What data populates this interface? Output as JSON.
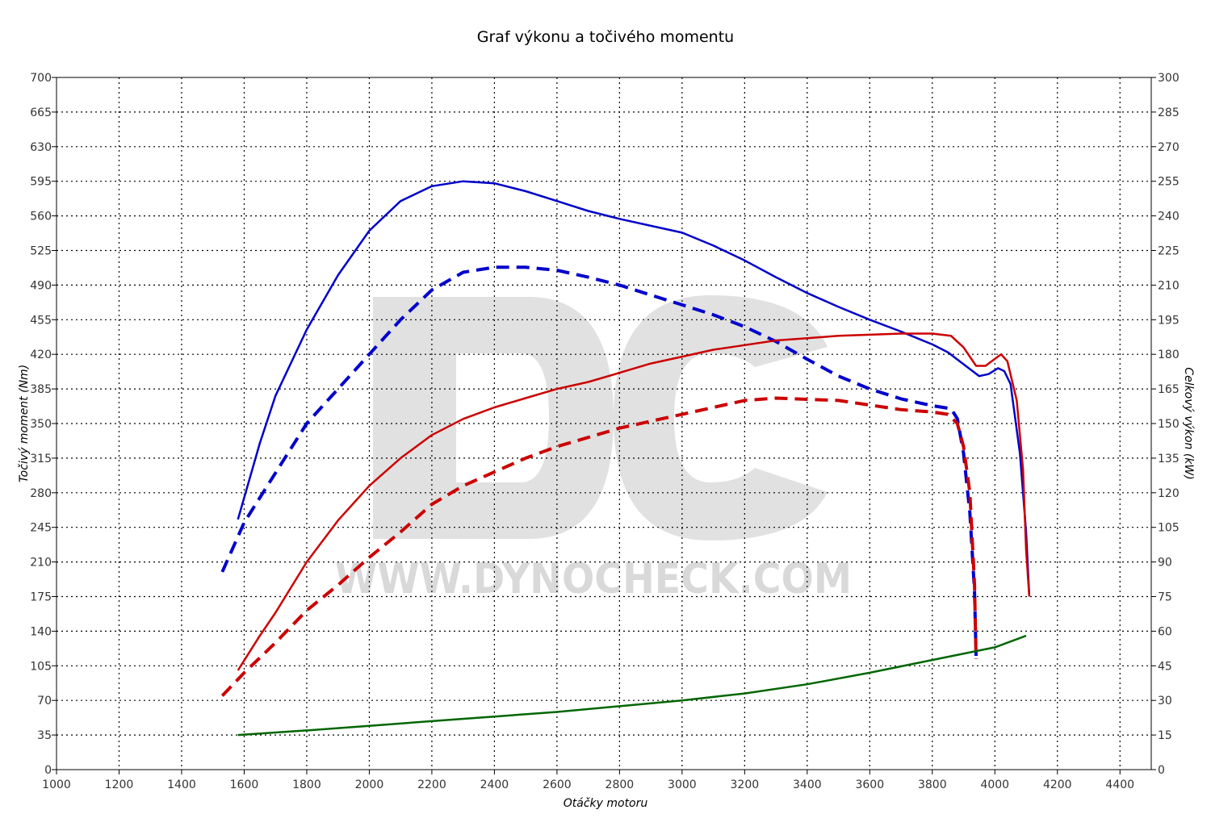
{
  "chart_data": {
    "type": "line",
    "title": "Graf výkonu a točivého momentu",
    "xlabel": "Otáčky motoru",
    "ylabel_left": "Točivý moment (Nm)",
    "ylabel_right": "Celkový výkon (kW)",
    "xlim": [
      1000,
      4500
    ],
    "ylim_left": [
      0,
      700
    ],
    "ylim_right": [
      0,
      300
    ],
    "x_ticks": [
      "1000",
      "1200",
      "1400",
      "1600",
      "1800",
      "2000",
      "2200",
      "2400",
      "2600",
      "2800",
      "3000",
      "3200",
      "3400",
      "3600",
      "3800",
      "4000",
      "4200",
      "4400"
    ],
    "y_left_ticks": [
      "0",
      "35",
      "70",
      "105",
      "140",
      "175",
      "210",
      "245",
      "280",
      "315",
      "350",
      "385",
      "420",
      "455",
      "490",
      "525",
      "560",
      "595",
      "630",
      "665",
      "700"
    ],
    "y_right_ticks": [
      "0",
      "15",
      "30",
      "45",
      "60",
      "75",
      "90",
      "105",
      "120",
      "135",
      "150",
      "165",
      "180",
      "195",
      "210",
      "225",
      "240",
      "255",
      "270",
      "285",
      "300"
    ],
    "grid": true,
    "watermark": {
      "logo": "DC",
      "text": "WWW.DYNOCHECK.COM"
    },
    "series": [
      {
        "color": "#0000cc",
        "style": "solid",
        "axis": "left",
        "points": [
          [
            1580,
            253
          ],
          [
            1650,
            330
          ],
          [
            1700,
            378
          ],
          [
            1800,
            445
          ],
          [
            1900,
            500
          ],
          [
            2000,
            545
          ],
          [
            2100,
            575
          ],
          [
            2200,
            590
          ],
          [
            2300,
            595
          ],
          [
            2400,
            593
          ],
          [
            2500,
            585
          ],
          [
            2600,
            575
          ],
          [
            2700,
            565
          ],
          [
            2800,
            557
          ],
          [
            2900,
            550
          ],
          [
            3000,
            543
          ],
          [
            3100,
            530
          ],
          [
            3200,
            515
          ],
          [
            3300,
            498
          ],
          [
            3400,
            482
          ],
          [
            3500,
            468
          ],
          [
            3600,
            455
          ],
          [
            3700,
            443
          ],
          [
            3800,
            430
          ],
          [
            3850,
            422
          ],
          [
            3900,
            410
          ],
          [
            3950,
            398
          ],
          [
            3980,
            400
          ],
          [
            4010,
            406
          ],
          [
            4030,
            403
          ],
          [
            4050,
            390
          ],
          [
            4080,
            320
          ],
          [
            4100,
            240
          ],
          [
            4110,
            176
          ]
        ]
      },
      {
        "color": "#0000cc",
        "style": "dashed",
        "axis": "left",
        "points": [
          [
            1530,
            200
          ],
          [
            1600,
            250
          ],
          [
            1700,
            300
          ],
          [
            1800,
            350
          ],
          [
            1900,
            385
          ],
          [
            2000,
            420
          ],
          [
            2100,
            455
          ],
          [
            2200,
            485
          ],
          [
            2300,
            503
          ],
          [
            2400,
            508
          ],
          [
            2500,
            508
          ],
          [
            2600,
            505
          ],
          [
            2700,
            498
          ],
          [
            2800,
            490
          ],
          [
            2900,
            480
          ],
          [
            3000,
            470
          ],
          [
            3100,
            460
          ],
          [
            3200,
            448
          ],
          [
            3300,
            433
          ],
          [
            3400,
            415
          ],
          [
            3500,
            398
          ],
          [
            3600,
            385
          ],
          [
            3700,
            375
          ],
          [
            3800,
            368
          ],
          [
            3860,
            365
          ],
          [
            3880,
            355
          ],
          [
            3900,
            320
          ],
          [
            3920,
            260
          ],
          [
            3935,
            180
          ],
          [
            3940,
            115
          ]
        ]
      },
      {
        "color": "#cc0000",
        "style": "solid",
        "axis": "right",
        "points": [
          [
            1580,
            43
          ],
          [
            1650,
            58
          ],
          [
            1700,
            68
          ],
          [
            1800,
            90
          ],
          [
            1900,
            108
          ],
          [
            2000,
            123
          ],
          [
            2100,
            135
          ],
          [
            2200,
            145
          ],
          [
            2300,
            152
          ],
          [
            2400,
            157
          ],
          [
            2500,
            161
          ],
          [
            2600,
            165
          ],
          [
            2700,
            168
          ],
          [
            2800,
            172
          ],
          [
            2900,
            176
          ],
          [
            3000,
            179
          ],
          [
            3100,
            182
          ],
          [
            3200,
            184
          ],
          [
            3300,
            186
          ],
          [
            3400,
            187
          ],
          [
            3500,
            188
          ],
          [
            3600,
            188.5
          ],
          [
            3700,
            189
          ],
          [
            3800,
            189
          ],
          [
            3860,
            188
          ],
          [
            3900,
            183
          ],
          [
            3940,
            175
          ],
          [
            3970,
            175
          ],
          [
            4000,
            178
          ],
          [
            4020,
            180
          ],
          [
            4040,
            177
          ],
          [
            4070,
            160
          ],
          [
            4090,
            130
          ],
          [
            4100,
            95
          ],
          [
            4110,
            75
          ]
        ]
      },
      {
        "color": "#cc0000",
        "style": "dashed",
        "axis": "right",
        "points": [
          [
            1530,
            32
          ],
          [
            1600,
            42
          ],
          [
            1700,
            55
          ],
          [
            1800,
            69
          ],
          [
            1900,
            80
          ],
          [
            2000,
            92
          ],
          [
            2100,
            103
          ],
          [
            2200,
            115
          ],
          [
            2300,
            123
          ],
          [
            2400,
            129
          ],
          [
            2500,
            135
          ],
          [
            2600,
            140
          ],
          [
            2700,
            144
          ],
          [
            2800,
            148
          ],
          [
            2900,
            151
          ],
          [
            3000,
            154
          ],
          [
            3100,
            157
          ],
          [
            3200,
            160
          ],
          [
            3300,
            161
          ],
          [
            3400,
            160.5
          ],
          [
            3500,
            160
          ],
          [
            3600,
            158
          ],
          [
            3700,
            156
          ],
          [
            3800,
            155
          ],
          [
            3850,
            154
          ],
          [
            3880,
            150
          ],
          [
            3900,
            140
          ],
          [
            3920,
            120
          ],
          [
            3935,
            80
          ],
          [
            3940,
            48
          ]
        ]
      },
      {
        "color": "#006600",
        "style": "solid",
        "axis": "right",
        "points": [
          [
            1580,
            15
          ],
          [
            1800,
            17
          ],
          [
            2000,
            19
          ],
          [
            2200,
            21
          ],
          [
            2400,
            23
          ],
          [
            2600,
            25
          ],
          [
            2800,
            27.5
          ],
          [
            3000,
            30
          ],
          [
            3200,
            33
          ],
          [
            3400,
            37
          ],
          [
            3600,
            42
          ],
          [
            3800,
            47.5
          ],
          [
            4000,
            53
          ],
          [
            4100,
            58
          ]
        ]
      }
    ]
  }
}
